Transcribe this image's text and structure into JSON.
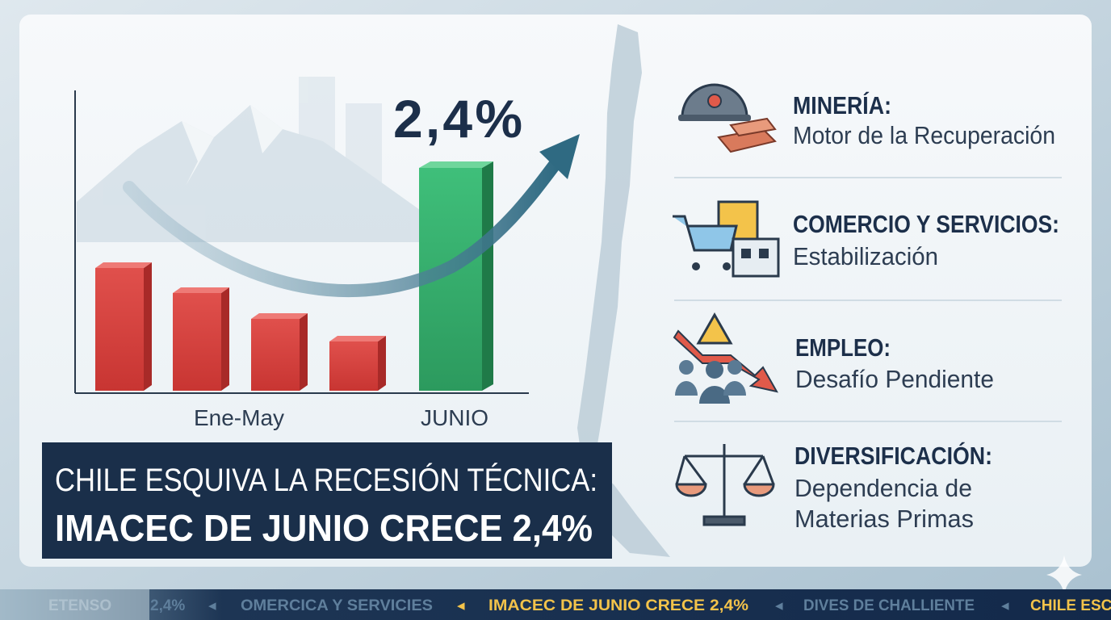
{
  "chart": {
    "big_value": "2,4%",
    "labels": [
      "Ene-May",
      "JUNIO"
    ]
  },
  "headline": {
    "line1": "CHILE ESQUIVA LA RECESIÓN TÉCNICA:",
    "line2": "IMACEC DE JUNIO CRECE 2,4%"
  },
  "items": [
    {
      "title": "MINERÍA:",
      "lines": [
        "Motor de la Recuperación"
      ]
    },
    {
      "title": "COMERCIO Y SERVICIOS:",
      "lines": [
        "Estabilización"
      ]
    },
    {
      "title": "EMPLEO:",
      "lines": [
        "Desafío Pendiente"
      ]
    },
    {
      "title": "DIVERSIFICACIÓN:",
      "lines": [
        "Dependencia de",
        "Materias Primas"
      ]
    }
  ],
  "ticker": [
    "ETENSO",
    "2,4%",
    "OMERCICA Y SERVICIES",
    "IMACEC DE JUNIO CRECE 2,4%",
    "DIVES DE CHALLIENTE",
    "CHILE ESC"
  ]
}
